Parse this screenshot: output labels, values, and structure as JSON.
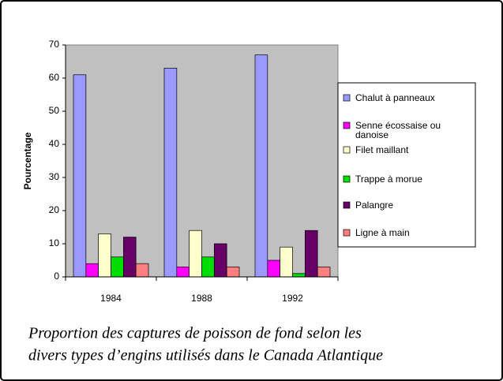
{
  "chart_data": {
    "type": "bar",
    "ylabel": "Pourcentage",
    "categories": [
      "1984",
      "1988",
      "1992"
    ],
    "series": [
      {
        "name": "Chalut à panneaux",
        "color": "#9999ff",
        "values": [
          61,
          63,
          67
        ]
      },
      {
        "name": "Senne écossaise ou danoise",
        "color": "#ff00ff",
        "values": [
          4,
          3,
          5
        ]
      },
      {
        "name": "Filet maillant",
        "color": "#ffffcc",
        "values": [
          13,
          14,
          9
        ]
      },
      {
        "name": "Trappe à morue",
        "color": "#00dd00",
        "values": [
          6,
          6,
          1
        ]
      },
      {
        "name": "Palangre",
        "color": "#660066",
        "values": [
          12,
          10,
          14
        ]
      },
      {
        "name": "Ligne à main",
        "color": "#ff8080",
        "values": [
          4,
          3,
          3
        ]
      }
    ],
    "ylim": [
      0,
      70
    ],
    "yticks": [
      0,
      10,
      20,
      30,
      40,
      50,
      60,
      70
    ],
    "plot_background": "#c0c0c0",
    "legend": "right",
    "caption": [
      "Proportion des captures de poisson de fond selon les",
      "divers types d’engins utilisés dans le Canada Atlantique"
    ]
  }
}
